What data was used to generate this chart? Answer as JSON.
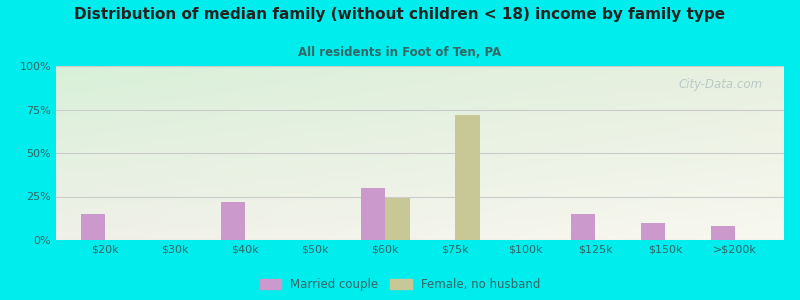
{
  "title": "Distribution of median family (without children < 18) income by family type",
  "subtitle": "All residents in Foot of Ten, PA",
  "categories": [
    "$20k",
    "$30k",
    "$40k",
    "$50k",
    "$60k",
    "$75k",
    "$100k",
    "$125k",
    "$150k",
    ">$200k"
  ],
  "married_couple": [
    15,
    0,
    22,
    0,
    30,
    0,
    0,
    15,
    10,
    8
  ],
  "female_no_husband": [
    0,
    0,
    0,
    0,
    24,
    72,
    0,
    0,
    0,
    0
  ],
  "married_color": "#cc99cc",
  "female_color": "#c8c896",
  "bg_outer": "#00eded",
  "title_color": "#222222",
  "subtitle_color": "#336666",
  "axis_label_color": "#336666",
  "ylim": [
    0,
    100
  ],
  "bar_width": 0.35,
  "watermark": "City-Data.com",
  "title_fontsize": 11,
  "subtitle_fontsize": 8.5,
  "tick_fontsize": 8,
  "legend_fontsize": 8.5
}
